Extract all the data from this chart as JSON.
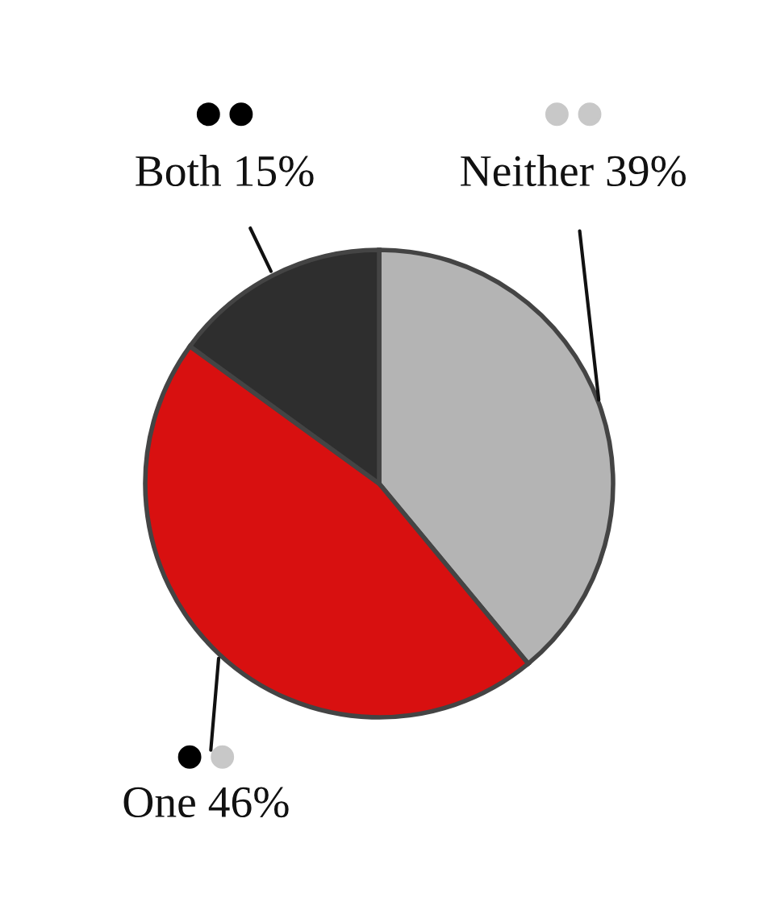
{
  "chart_data": {
    "type": "pie",
    "categories": [
      "Neither",
      "One",
      "Both"
    ],
    "values": [
      39,
      46,
      15
    ],
    "colors": [
      "#b4b4b4",
      "#d81010",
      "#2e2e2e"
    ],
    "value_labels": [
      "39%",
      "46%",
      "15%"
    ]
  }
}
